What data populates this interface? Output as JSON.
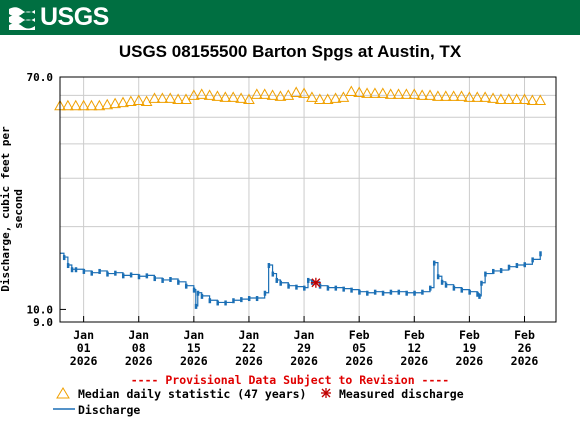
{
  "logo": {
    "text": "USGS"
  },
  "chart_data": {
    "type": "line",
    "title": "USGS 08155500 Barton Spgs at Austin, TX",
    "ylabel": "Discharge, cubic feet per second",
    "yscale": "log",
    "ylim": [
      9,
      70
    ],
    "yticks": [
      {
        "value": 70,
        "label": "70.0"
      },
      {
        "value": 10,
        "label": "10.0"
      },
      {
        "value": 9,
        "label": "9.0"
      }
    ],
    "xlim": [
      "2025-12-29",
      "2026-03-02"
    ],
    "xticks": [
      {
        "date": "2026-01-01",
        "month": "Jan",
        "day": "01",
        "year": "2026"
      },
      {
        "date": "2026-01-08",
        "month": "Jan",
        "day": "08",
        "year": "2026"
      },
      {
        "date": "2026-01-15",
        "month": "Jan",
        "day": "15",
        "year": "2026"
      },
      {
        "date": "2026-01-22",
        "month": "Jan",
        "day": "22",
        "year": "2026"
      },
      {
        "date": "2026-01-29",
        "month": "Jan",
        "day": "29",
        "year": "2026"
      },
      {
        "date": "2026-02-05",
        "month": "Feb",
        "day": "05",
        "year": "2026"
      },
      {
        "date": "2026-02-12",
        "month": "Feb",
        "day": "12",
        "year": "2026"
      },
      {
        "date": "2026-02-19",
        "month": "Feb",
        "day": "19",
        "year": "2026"
      },
      {
        "date": "2026-02-26",
        "month": "Feb",
        "day": "26",
        "year": "2026"
      }
    ],
    "grid": true,
    "median": {
      "name": "Median daily statistic (47 years)",
      "color": "#F0A000",
      "marker": "triangle",
      "points": [
        [
          "2025-12-29",
          55
        ],
        [
          "2025-12-30",
          55
        ],
        [
          "2025-12-31",
          55
        ],
        [
          "2026-01-01",
          55
        ],
        [
          "2026-01-02",
          55
        ],
        [
          "2026-01-03",
          55
        ],
        [
          "2026-01-04",
          55.5
        ],
        [
          "2026-01-05",
          56
        ],
        [
          "2026-01-06",
          56.5
        ],
        [
          "2026-01-07",
          57
        ],
        [
          "2026-01-08",
          57.5
        ],
        [
          "2026-01-09",
          57
        ],
        [
          "2026-01-10",
          58.5
        ],
        [
          "2026-01-11",
          58.5
        ],
        [
          "2026-01-12",
          58.5
        ],
        [
          "2026-01-13",
          58
        ],
        [
          "2026-01-14",
          58
        ],
        [
          "2026-01-15",
          60
        ],
        [
          "2026-01-16",
          60.5
        ],
        [
          "2026-01-17",
          60
        ],
        [
          "2026-01-18",
          59.5
        ],
        [
          "2026-01-19",
          59
        ],
        [
          "2026-01-20",
          59
        ],
        [
          "2026-01-21",
          58.5
        ],
        [
          "2026-01-22",
          58
        ],
        [
          "2026-01-23",
          60.5
        ],
        [
          "2026-01-24",
          60.5
        ],
        [
          "2026-01-25",
          60
        ],
        [
          "2026-01-26",
          59.5
        ],
        [
          "2026-01-27",
          60
        ],
        [
          "2026-01-28",
          61.5
        ],
        [
          "2026-01-29",
          61
        ],
        [
          "2026-01-30",
          59
        ],
        [
          "2026-01-31",
          58
        ],
        [
          "2026-02-01",
          58
        ],
        [
          "2026-02-02",
          58.5
        ],
        [
          "2026-02-03",
          59
        ],
        [
          "2026-02-04",
          62
        ],
        [
          "2026-02-05",
          61.5
        ],
        [
          "2026-02-06",
          61
        ],
        [
          "2026-02-07",
          61
        ],
        [
          "2026-02-08",
          61
        ],
        [
          "2026-02-09",
          60.5
        ],
        [
          "2026-02-10",
          60.5
        ],
        [
          "2026-02-11",
          60.5
        ],
        [
          "2026-02-12",
          60.5
        ],
        [
          "2026-02-13",
          60
        ],
        [
          "2026-02-14",
          60
        ],
        [
          "2026-02-15",
          59.5
        ],
        [
          "2026-02-16",
          59.5
        ],
        [
          "2026-02-17",
          59.5
        ],
        [
          "2026-02-18",
          59.5
        ],
        [
          "2026-02-19",
          59
        ],
        [
          "2026-02-20",
          59
        ],
        [
          "2026-02-21",
          59
        ],
        [
          "2026-02-22",
          58.5
        ],
        [
          "2026-02-23",
          58
        ],
        [
          "2026-02-24",
          58
        ],
        [
          "2026-02-25",
          58
        ],
        [
          "2026-02-26",
          58
        ],
        [
          "2026-02-27",
          57.5
        ],
        [
          "2026-02-28",
          57.5
        ]
      ]
    },
    "discharge": {
      "name": "Discharge",
      "color": "#1B6FB5",
      "points": [
        [
          "2025-12-29T00:00",
          16
        ],
        [
          "2025-12-29T12:00",
          15.5
        ],
        [
          "2025-12-30T00:00",
          14.5
        ],
        [
          "2025-12-30T12:00",
          14
        ],
        [
          "2025-12-31T00:00",
          14
        ],
        [
          "2026-01-01T00:00",
          13.8
        ],
        [
          "2026-01-02T00:00",
          13.6
        ],
        [
          "2026-01-03T00:00",
          13.8
        ],
        [
          "2026-01-04T00:00",
          13.5
        ],
        [
          "2026-01-05T00:00",
          13.6
        ],
        [
          "2026-01-06T00:00",
          13.3
        ],
        [
          "2026-01-07T00:00",
          13.4
        ],
        [
          "2026-01-08T00:00",
          13.2
        ],
        [
          "2026-01-09T00:00",
          13.3
        ],
        [
          "2026-01-10T00:00",
          13
        ],
        [
          "2026-01-11T00:00",
          12.8
        ],
        [
          "2026-01-12T00:00",
          12.9
        ],
        [
          "2026-01-13T00:00",
          12.6
        ],
        [
          "2026-01-14T00:00",
          12.2
        ],
        [
          "2026-01-15T00:00",
          11.8
        ],
        [
          "2026-01-15T06:00",
          10.3
        ],
        [
          "2026-01-15T12:00",
          11.5
        ],
        [
          "2026-01-16T00:00",
          11.2
        ],
        [
          "2026-01-17T00:00",
          10.8
        ],
        [
          "2026-01-18T00:00",
          10.6
        ],
        [
          "2026-01-19T00:00",
          10.6
        ],
        [
          "2026-01-20T00:00",
          10.8
        ],
        [
          "2026-01-21T00:00",
          10.9
        ],
        [
          "2026-01-22T00:00",
          11
        ],
        [
          "2026-01-23T00:00",
          11
        ],
        [
          "2026-01-24T00:00",
          11.5
        ],
        [
          "2026-01-24T12:00",
          14.5
        ],
        [
          "2026-01-25T00:00",
          13.5
        ],
        [
          "2026-01-25T12:00",
          12.8
        ],
        [
          "2026-01-26T00:00",
          12.5
        ],
        [
          "2026-01-27T00:00",
          12.2
        ],
        [
          "2026-01-28T00:00",
          12.1
        ],
        [
          "2026-01-29T00:00",
          12
        ],
        [
          "2026-01-29T12:00",
          12.8
        ],
        [
          "2026-01-30T00:00",
          12.6
        ],
        [
          "2026-01-31T00:00",
          12.2
        ],
        [
          "2026-02-01T00:00",
          12
        ],
        [
          "2026-02-02T00:00",
          12
        ],
        [
          "2026-02-03T00:00",
          11.9
        ],
        [
          "2026-02-04T00:00",
          11.8
        ],
        [
          "2026-02-05T00:00",
          11.6
        ],
        [
          "2026-02-06T00:00",
          11.5
        ],
        [
          "2026-02-07T00:00",
          11.6
        ],
        [
          "2026-02-08T00:00",
          11.5
        ],
        [
          "2026-02-09T00:00",
          11.6
        ],
        [
          "2026-02-10T00:00",
          11.6
        ],
        [
          "2026-02-11T00:00",
          11.5
        ],
        [
          "2026-02-12T00:00",
          11.5
        ],
        [
          "2026-02-13T00:00",
          11.6
        ],
        [
          "2026-02-14T00:00",
          12
        ],
        [
          "2026-02-14T12:00",
          14.8
        ],
        [
          "2026-02-15T00:00",
          13.2
        ],
        [
          "2026-02-15T12:00",
          12.6
        ],
        [
          "2026-02-16T00:00",
          12.3
        ],
        [
          "2026-02-17T00:00",
          12
        ],
        [
          "2026-02-18T00:00",
          11.8
        ],
        [
          "2026-02-19T00:00",
          11.6
        ],
        [
          "2026-02-20T00:00",
          11.4
        ],
        [
          "2026-02-20T06:00",
          11.2
        ],
        [
          "2026-02-20T12:00",
          12.5
        ],
        [
          "2026-02-21T00:00",
          13.5
        ],
        [
          "2026-02-22T00:00",
          13.8
        ],
        [
          "2026-02-23T00:00",
          13.9
        ],
        [
          "2026-02-24T00:00",
          14.3
        ],
        [
          "2026-02-25T00:00",
          14.5
        ],
        [
          "2026-02-26T00:00",
          14.6
        ],
        [
          "2026-02-27T00:00",
          15.2
        ],
        [
          "2026-02-28T00:00",
          16
        ]
      ]
    },
    "measured": {
      "name": "Measured discharge",
      "color": "#C00000",
      "points": [
        [
          "2026-01-30T12:00",
          12.5
        ]
      ]
    },
    "notice": "---- Provisional Data Subject to Revision ----"
  }
}
